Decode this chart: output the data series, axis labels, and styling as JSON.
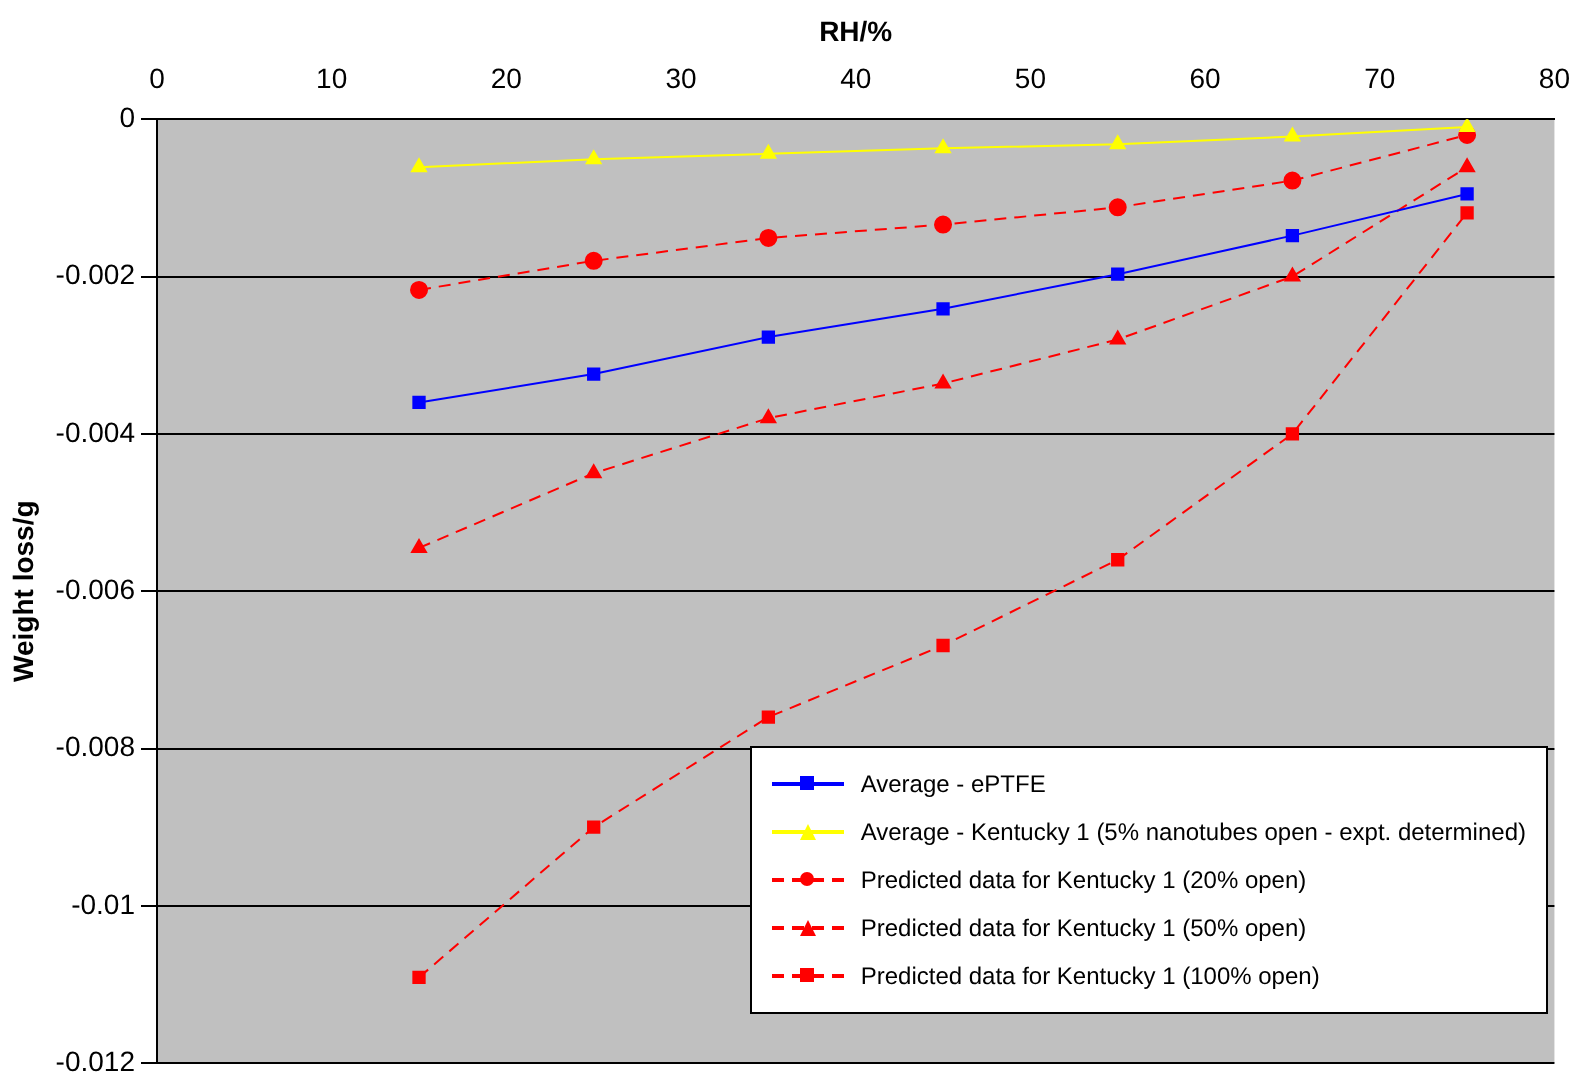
{
  "chart_data": {
    "type": "line",
    "xlabel": "RH/%",
    "ylabel": "Weight loss/g",
    "x": [
      15,
      25,
      35,
      45,
      55,
      65,
      75
    ],
    "xlim": [
      0,
      80
    ],
    "xticks": [
      0,
      10,
      20,
      30,
      40,
      50,
      60,
      70,
      80
    ],
    "ylim": [
      -0.012,
      0
    ],
    "yticks": [
      -0.012,
      -0.01,
      -0.008,
      -0.006,
      -0.004,
      -0.002,
      0
    ],
    "grid": "y",
    "legend": "bottom right",
    "series": [
      {
        "name": "Average - ePTFE",
        "color": "#0000ff",
        "marker": "square",
        "line_style": "solid",
        "values": [
          -0.0036,
          -0.00324,
          -0.00277,
          -0.00241,
          -0.00197,
          -0.00148,
          -0.00095
        ]
      },
      {
        "name": "Average - Kentucky 1 (5% nanotubes open - expt. determined)",
        "color": "#ffff00",
        "marker": "triangle",
        "line_style": "solid",
        "values": [
          -0.00061,
          -0.00051,
          -0.00044,
          -0.00037,
          -0.00032,
          -0.00022,
          -0.0001
        ]
      },
      {
        "name": "Predicted data for Kentucky 1 (20% open)",
        "color": "#ff0000",
        "marker": "circle",
        "line_style": "dashed",
        "values": [
          -0.00217,
          -0.0018,
          -0.00151,
          -0.00134,
          -0.00112,
          -0.00078,
          -0.0002
        ]
      },
      {
        "name": "Predicted data for Kentucky 1 (50% open)",
        "color": "#ff0000",
        "marker": "triangle",
        "line_style": "dashed",
        "values": [
          -0.00545,
          -0.0045,
          -0.0038,
          -0.00336,
          -0.0028,
          -0.002,
          -0.00061
        ]
      },
      {
        "name": "Predicted data for Kentucky 1 (100% open)",
        "color": "#ff0000",
        "marker": "square",
        "line_style": "dashed",
        "values": [
          -0.01091,
          -0.009,
          -0.0076,
          -0.00669,
          -0.0056,
          -0.004,
          -0.00119
        ]
      }
    ]
  }
}
